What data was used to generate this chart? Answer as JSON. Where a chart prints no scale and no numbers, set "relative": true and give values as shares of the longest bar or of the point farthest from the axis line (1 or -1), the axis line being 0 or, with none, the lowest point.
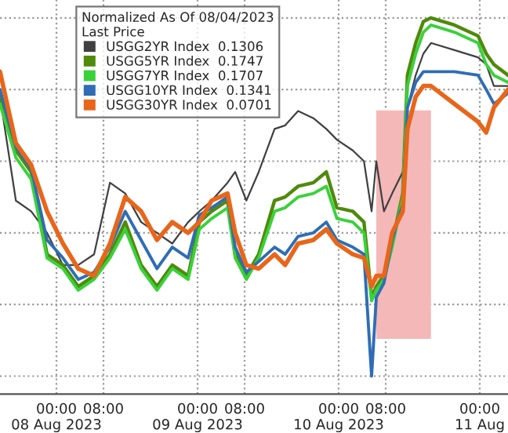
{
  "chart_data": {
    "type": "line",
    "relative": true,
    "legend": "top",
    "legend_title": "Normalized As Of 08/04/2023\nLast Price",
    "grid": true,
    "line_style": "solid",
    "x": [
      "2023-08-07T14:24",
      "2023-08-07T17:06",
      "2023-08-07T19:42",
      "2023-08-07T22:24",
      "2023-08-08T01:06",
      "2023-08-08T03:42",
      "2023-08-08T06:24",
      "2023-08-08T09:06",
      "2023-08-08T11:42",
      "2023-08-08T14:24",
      "2023-08-08T17:06",
      "2023-08-08T19:42",
      "2023-08-08T22:24",
      "2023-08-09T00:18",
      "2023-08-09T02:24",
      "2023-08-09T05:06",
      "2023-08-09T06:24",
      "2023-08-09T08:18",
      "2023-08-09T10:24",
      "2023-08-09T13:06",
      "2023-08-09T14:54",
      "2023-08-09T17:06",
      "2023-08-09T19:42",
      "2023-08-09T21:54",
      "2023-08-09T23:42",
      "2023-08-10T02:24",
      "2023-08-10T04:18",
      "2023-08-10T05:36",
      "2023-08-10T06:24",
      "2023-08-10T07:42",
      "2023-08-10T09:06",
      "2023-08-10T10:54",
      "2023-08-10T11:42",
      "2023-08-10T13:06",
      "2023-08-10T14:24",
      "2023-08-10T15:42",
      "2023-08-10T19:42",
      "2023-08-10T23:42",
      "2023-08-11T01:06",
      "2023-08-11T02:24",
      "2023-08-11T04:48"
    ],
    "xlim": [
      "2023-08-07T14:24",
      "2023-08-11T04:48"
    ],
    "xticks": [
      {
        "value": "2023-08-08T00:00",
        "label": "00:00\n08 Aug 2023"
      },
      {
        "value": "2023-08-08T08:00",
        "label": "08:00"
      },
      {
        "value": "2023-08-09T00:00",
        "label": "00:00\n09 Aug 2023"
      },
      {
        "value": "2023-08-09T08:00",
        "label": "08:00"
      },
      {
        "value": "2023-08-10T00:00",
        "label": "00:00\n10 Aug 2023"
      },
      {
        "value": "2023-08-10T08:00",
        "label": "08:00"
      },
      {
        "value": "2023-08-11T00:00",
        "label": "00:00\n11 Aug"
      }
    ],
    "bands": [
      {
        "axis": "x",
        "from": "2023-08-10T06:24",
        "to": "2023-08-10T15:42",
        "color": "#f4b8b8"
      }
    ],
    "series": [
      {
        "name": "USGG2YR Index  0.1306",
        "color": "#404040",
        "values": [
          0.78,
          0.49,
          0.46,
          0.4,
          0.31,
          0.31,
          0.34,
          0.54,
          0.51,
          0.43,
          0.4,
          0.37,
          0.43,
          0.46,
          0.49,
          0.54,
          0.57,
          0.49,
          0.57,
          0.69,
          0.7,
          0.74,
          0.72,
          0.69,
          0.66,
          0.63,
          0.6,
          0.46,
          0.6,
          0.46,
          0.51,
          0.57,
          0.75,
          0.84,
          0.9,
          0.93,
          0.91,
          0.89,
          0.87,
          0.81,
          0.81
        ]
      },
      {
        "name": "USGG5YR Index  0.1747",
        "color": "#4f8a0b",
        "values": [
          0.78,
          0.63,
          0.57,
          0.34,
          0.31,
          0.25,
          0.28,
          0.34,
          0.43,
          0.31,
          0.25,
          0.31,
          0.28,
          0.43,
          0.46,
          0.49,
          0.34,
          0.28,
          0.34,
          0.49,
          0.5,
          0.53,
          0.54,
          0.57,
          0.47,
          0.46,
          0.43,
          0.22,
          0.25,
          0.28,
          0.37,
          0.51,
          0.84,
          0.93,
          0.99,
          1.0,
          0.98,
          0.95,
          0.9,
          0.87,
          0.84
        ]
      },
      {
        "name": "USGG7YR Index  0.1707",
        "color": "#3ad13a",
        "values": [
          0.76,
          0.61,
          0.55,
          0.33,
          0.3,
          0.24,
          0.27,
          0.33,
          0.41,
          0.3,
          0.24,
          0.3,
          0.27,
          0.41,
          0.44,
          0.47,
          0.33,
          0.27,
          0.33,
          0.46,
          0.47,
          0.5,
          0.51,
          0.53,
          0.44,
          0.43,
          0.4,
          0.21,
          0.24,
          0.27,
          0.36,
          0.5,
          0.81,
          0.9,
          0.96,
          0.98,
          0.96,
          0.93,
          0.87,
          0.84,
          0.82
        ]
      },
      {
        "name": "USGG10YR Index  0.1341",
        "color": "#2f6db5",
        "values": [
          0.8,
          0.64,
          0.58,
          0.38,
          0.33,
          0.27,
          0.29,
          0.36,
          0.46,
          0.38,
          0.3,
          0.36,
          0.33,
          0.45,
          0.47,
          0.5,
          0.36,
          0.29,
          0.32,
          0.36,
          0.34,
          0.39,
          0.4,
          0.43,
          0.38,
          0.36,
          0.34,
          0.0,
          0.22,
          0.26,
          0.38,
          0.48,
          0.75,
          0.82,
          0.85,
          0.85,
          0.85,
          0.84,
          0.8,
          0.76,
          0.79
        ]
      },
      {
        "name": "USGG30YR Index  0.0701",
        "color": "#e8661a",
        "values": [
          0.85,
          0.65,
          0.59,
          0.46,
          0.37,
          0.3,
          0.28,
          0.37,
          0.5,
          0.46,
          0.38,
          0.43,
          0.4,
          0.43,
          0.49,
          0.51,
          0.4,
          0.31,
          0.3,
          0.34,
          0.31,
          0.37,
          0.38,
          0.41,
          0.37,
          0.34,
          0.33,
          0.25,
          0.28,
          0.28,
          0.4,
          0.46,
          0.69,
          0.78,
          0.81,
          0.81,
          0.76,
          0.71,
          0.68,
          0.75,
          0.8
        ]
      }
    ]
  }
}
